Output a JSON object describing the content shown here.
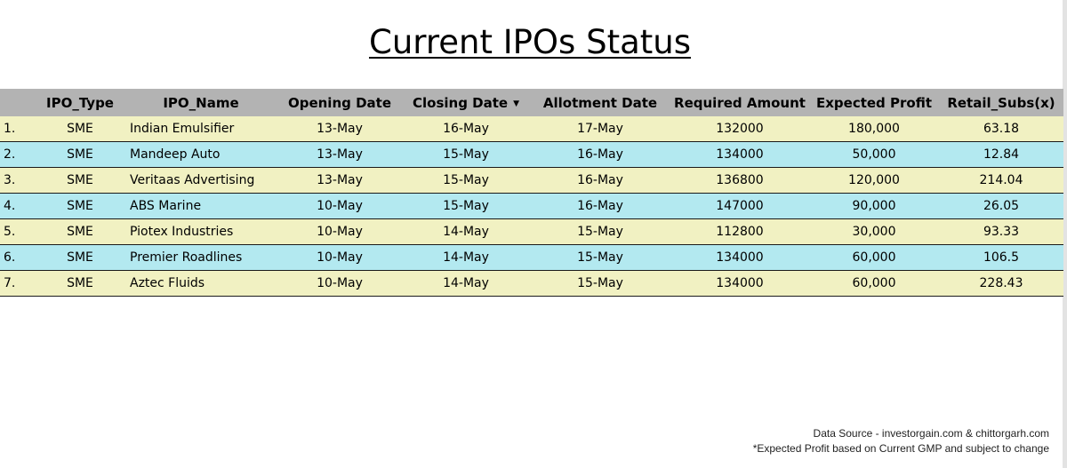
{
  "title": "Current IPOs Status",
  "columns": [
    "",
    "IPO_Type",
    "IPO_Name",
    "Opening Date",
    "Closing Date",
    "Allotment Date",
    "Required Amount",
    "Expected Profit",
    "Retail_Subs(x)"
  ],
  "sort_indicator": "▼",
  "rows": [
    {
      "idx": "1.",
      "type": "SME",
      "name": "Indian Emulsifier",
      "open": "13-May",
      "close": "16-May",
      "allot": "17-May",
      "amount": "132000",
      "profit": "180,000",
      "subs": "63.18"
    },
    {
      "idx": "2.",
      "type": "SME",
      "name": "Mandeep Auto",
      "open": "13-May",
      "close": "15-May",
      "allot": "16-May",
      "amount": "134000",
      "profit": "50,000",
      "subs": "12.84"
    },
    {
      "idx": "3.",
      "type": "SME",
      "name": "Veritaas Advertising",
      "open": "13-May",
      "close": "15-May",
      "allot": "16-May",
      "amount": "136800",
      "profit": "120,000",
      "subs": "214.04"
    },
    {
      "idx": "4.",
      "type": "SME",
      "name": "ABS Marine",
      "open": "10-May",
      "close": "15-May",
      "allot": "16-May",
      "amount": "147000",
      "profit": "90,000",
      "subs": "26.05"
    },
    {
      "idx": "5.",
      "type": "SME",
      "name": "Piotex Industries",
      "open": "10-May",
      "close": "14-May",
      "allot": "15-May",
      "amount": "112800",
      "profit": "30,000",
      "subs": "93.33"
    },
    {
      "idx": "6.",
      "type": "SME",
      "name": "Premier Roadlines",
      "open": "10-May",
      "close": "14-May",
      "allot": "15-May",
      "amount": "134000",
      "profit": "60,000",
      "subs": "106.5"
    },
    {
      "idx": "7.",
      "type": "SME",
      "name": "Aztec Fluids",
      "open": "10-May",
      "close": "14-May",
      "allot": "15-May",
      "amount": "134000",
      "profit": "60,000",
      "subs": "228.43"
    }
  ],
  "footer": {
    "source": "Data Source - investorgain.com & chittorgarh.com",
    "note": "*Expected Profit  based on Current GMP and subject to change"
  },
  "colors": {
    "header_bg": "#b3b3b3",
    "row_odd": "#f1f1c2",
    "row_even": "#b3e9f0"
  }
}
